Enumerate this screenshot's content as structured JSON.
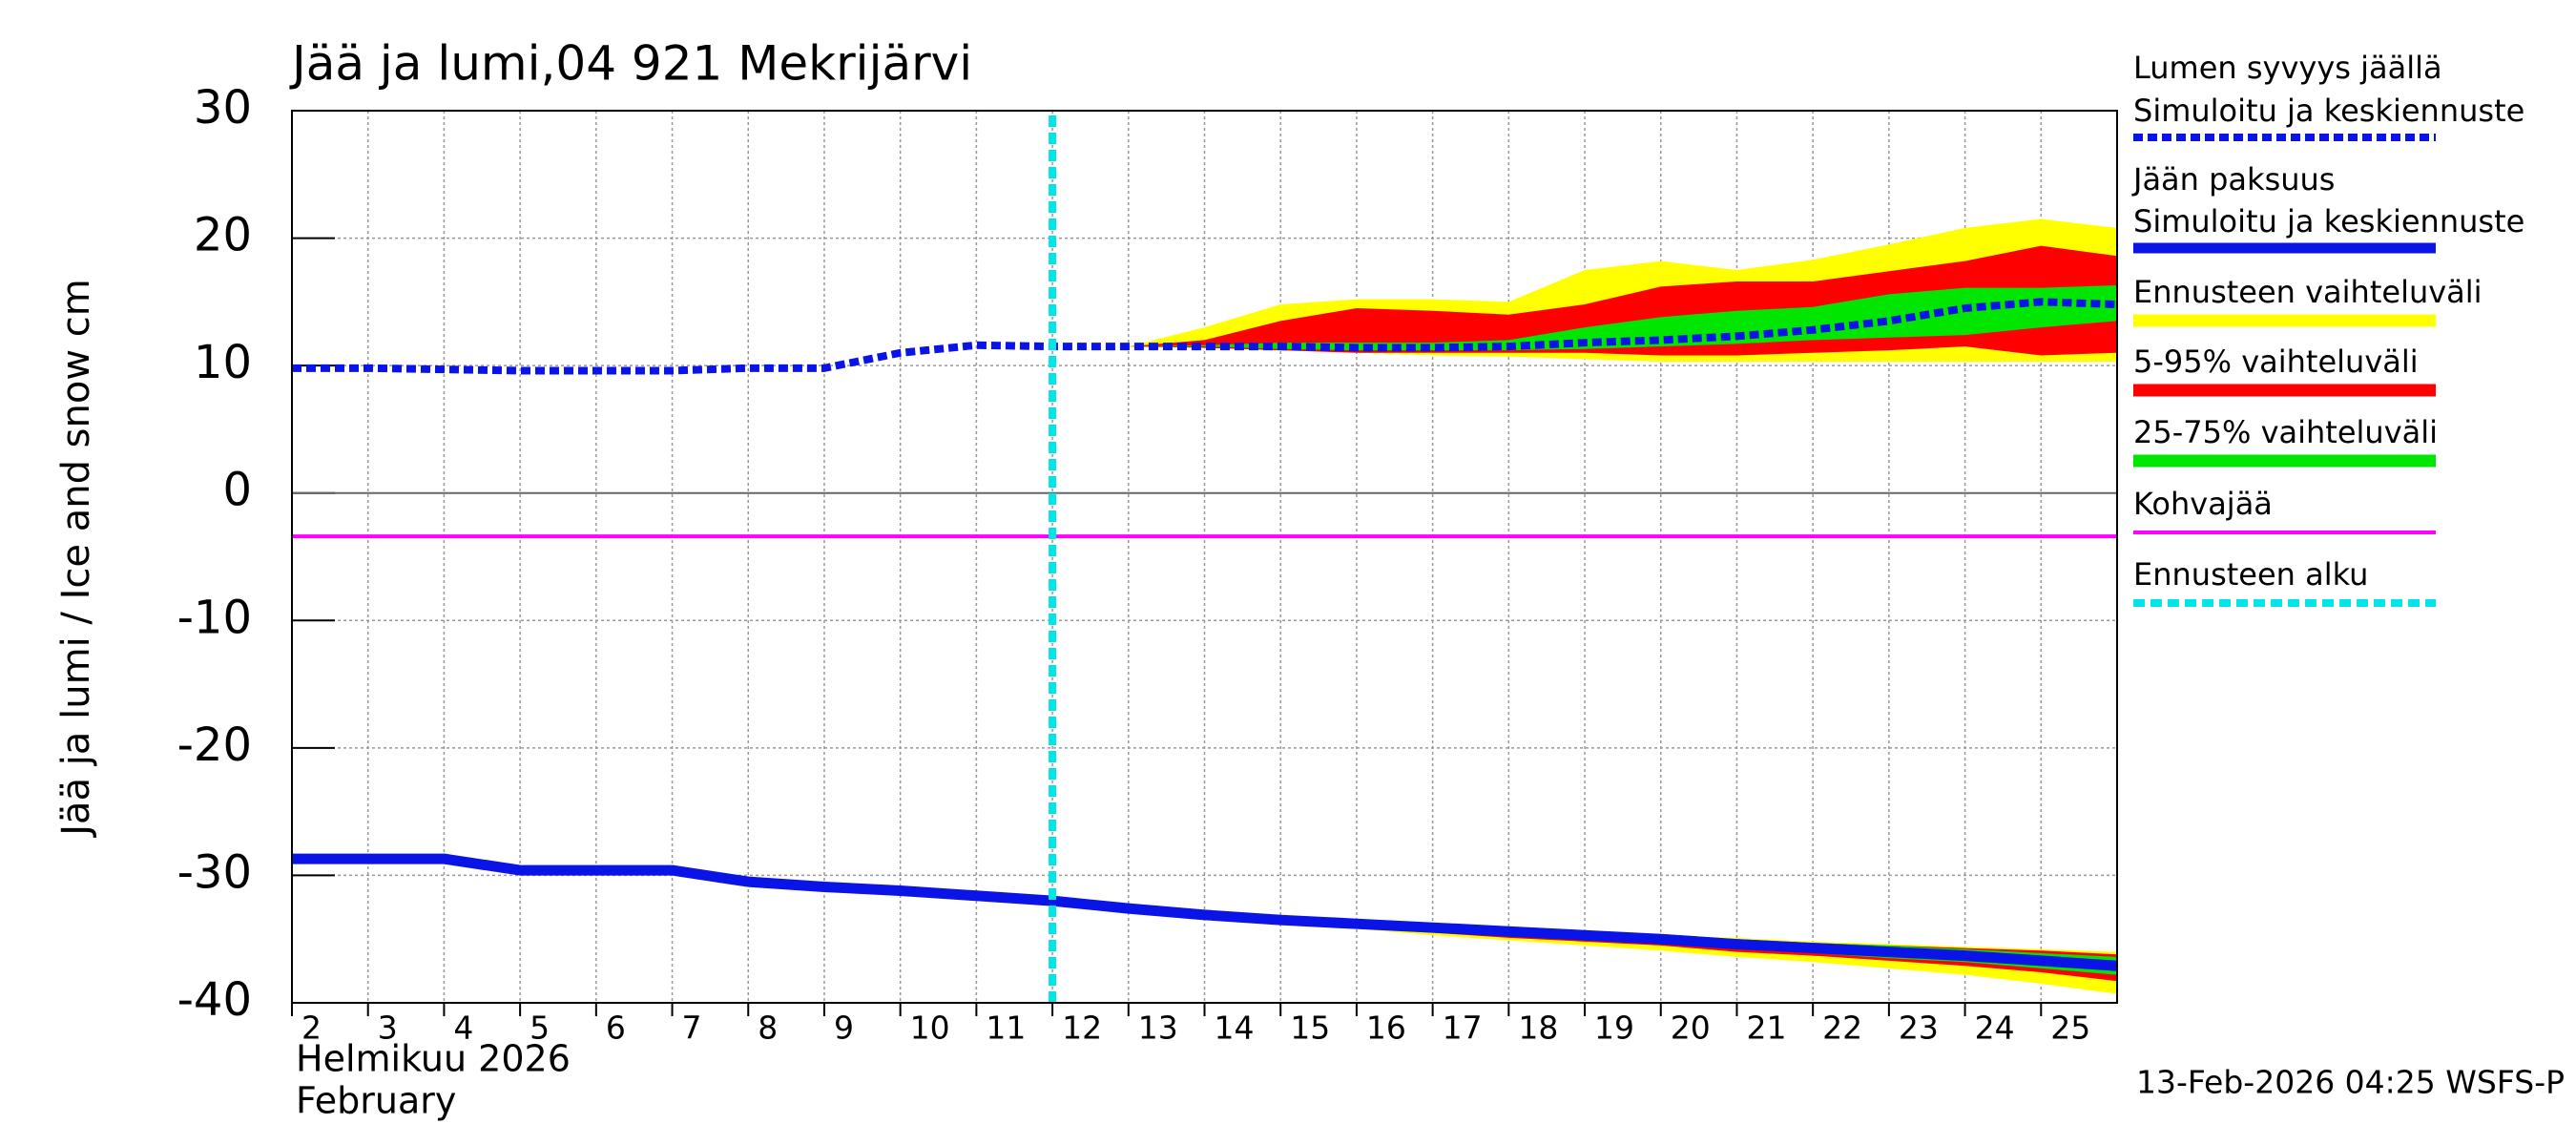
{
  "chart_data": {
    "type": "band-line",
    "title": "Jää ja lumi,04 921 Mekrijärvi",
    "ylabel": "Jää ja lumi / Ice and snow    cm",
    "month_label": "Helmikuu  2026",
    "month_label_en": "February",
    "footer": "13-Feb-2026 04:25 WSFS-P",
    "xlim": [
      2,
      26
    ],
    "xticks": [
      2,
      3,
      4,
      5,
      6,
      7,
      8,
      9,
      10,
      11,
      12,
      13,
      14,
      15,
      16,
      17,
      18,
      19,
      20,
      21,
      22,
      23,
      24,
      25
    ],
    "ylim": [
      -40,
      30
    ],
    "yticks": [
      -40,
      -30,
      -20,
      -10,
      0,
      10,
      20,
      30
    ],
    "grid": true,
    "x": [
      2,
      3,
      4,
      5,
      6,
      7,
      8,
      9,
      10,
      11,
      12,
      13,
      14,
      15,
      16,
      17,
      18,
      19,
      20,
      21,
      22,
      23,
      24,
      25,
      26
    ],
    "series": [
      {
        "name": "Lumen syvyys jäällä",
        "label": "Simuloitu ja keskiennuste",
        "color": "#0a14e6",
        "style": "dashed",
        "values": [
          9.8,
          9.8,
          9.7,
          9.6,
          9.6,
          9.6,
          9.8,
          9.8,
          11.0,
          11.6,
          11.5,
          11.5,
          11.5,
          11.5,
          11.4,
          11.4,
          11.5,
          11.8,
          12.0,
          12.3,
          12.8,
          13.5,
          14.5,
          15.0,
          14.8
        ]
      },
      {
        "name": "Jään paksuus",
        "label": "Simuloitu ja keskiennuste",
        "color": "#0a14e6",
        "style": "solid",
        "values": [
          -28.7,
          -28.7,
          -28.7,
          -29.6,
          -29.6,
          -29.6,
          -30.5,
          -30.9,
          -31.2,
          -31.6,
          -32.0,
          -32.6,
          -33.1,
          -33.5,
          -33.8,
          -34.1,
          -34.4,
          -34.7,
          -35.0,
          -35.4,
          -35.7,
          -36.0,
          -36.3,
          -36.7,
          -37.1
        ]
      },
      {
        "name": "Kohvajää",
        "color": "#ff00ff",
        "style": "thin",
        "values": [
          -3.4,
          -3.4,
          -3.4,
          -3.4,
          -3.4,
          -3.4,
          -3.4,
          -3.4,
          -3.4,
          -3.4,
          -3.4,
          -3.4,
          -3.4,
          -3.4,
          -3.4,
          -3.4,
          -3.4,
          -3.4,
          -3.4,
          -3.4,
          -3.4,
          -3.4,
          -3.4,
          -3.4,
          -3.4
        ]
      }
    ],
    "band_x": [
      13,
      14,
      15,
      16,
      17,
      18,
      19,
      20,
      21,
      22,
      23,
      24,
      25,
      26
    ],
    "bands": [
      {
        "name": "Ennusteen vaihteluväli",
        "color": "#ffff00",
        "snow_upper": [
          11.5,
          13.0,
          14.8,
          15.2,
          15.2,
          15.0,
          17.5,
          18.2,
          17.5,
          18.3,
          19.5,
          20.8,
          21.5,
          20.8
        ],
        "snow_lower": [
          11.5,
          11.5,
          11.3,
          11.0,
          10.8,
          10.7,
          10.5,
          10.3,
          10.3,
          10.3,
          10.3,
          10.3,
          10.3,
          10.3
        ],
        "ice_upper": [
          -32.5,
          -33.0,
          -33.3,
          -33.6,
          -33.9,
          -34.1,
          -34.4,
          -34.7,
          -34.9,
          -35.2,
          -35.4,
          -35.6,
          -35.8,
          -36.0
        ],
        "ice_lower": [
          -32.7,
          -33.3,
          -33.8,
          -34.2,
          -34.7,
          -35.1,
          -35.5,
          -35.9,
          -36.4,
          -36.8,
          -37.3,
          -37.8,
          -38.5,
          -39.3
        ]
      },
      {
        "name": "5-95% vaihteluväli",
        "color": "#ff0000",
        "snow_upper": [
          11.5,
          12.0,
          13.5,
          14.5,
          14.3,
          14.0,
          14.8,
          16.2,
          16.6,
          16.6,
          17.4,
          18.2,
          19.4,
          18.6
        ],
        "snow_lower": [
          11.5,
          11.4,
          11.2,
          11.0,
          11.0,
          11.0,
          11.0,
          10.8,
          10.8,
          11.0,
          11.2,
          11.5,
          10.8,
          11.0
        ],
        "ice_upper": [
          -32.5,
          -33.0,
          -33.4,
          -33.7,
          -34.0,
          -34.2,
          -34.5,
          -34.8,
          -35.0,
          -35.3,
          -35.5,
          -35.7,
          -35.9,
          -36.2
        ],
        "ice_lower": [
          -32.7,
          -33.2,
          -33.7,
          -34.1,
          -34.5,
          -34.9,
          -35.2,
          -35.5,
          -36.0,
          -36.3,
          -36.7,
          -37.1,
          -37.6,
          -38.3
        ]
      },
      {
        "name": "25-75% vaihteluväli",
        "color": "#00e600",
        "snow_upper": [
          11.5,
          11.6,
          11.8,
          11.8,
          11.8,
          12.0,
          13.0,
          13.8,
          14.3,
          14.6,
          15.6,
          16.1,
          16.1,
          16.3
        ],
        "snow_lower": [
          11.5,
          11.5,
          11.3,
          11.2,
          11.2,
          11.2,
          11.3,
          11.5,
          11.7,
          12.0,
          12.2,
          12.4,
          13.0,
          13.5
        ],
        "ice_upper": [
          -32.5,
          -32.9,
          -33.3,
          -33.6,
          -33.8,
          -34.1,
          -34.4,
          -34.6,
          -35.0,
          -35.3,
          -35.5,
          -35.8,
          -36.1,
          -36.4
        ],
        "ice_lower": [
          -32.7,
          -33.3,
          -33.7,
          -34.0,
          -34.4,
          -34.7,
          -35.0,
          -35.4,
          -35.8,
          -36.1,
          -36.5,
          -36.8,
          -37.3,
          -37.8
        ]
      }
    ],
    "forecast_start": {
      "name": "Ennusteen alku",
      "x": 12,
      "color": "#00e5e5"
    }
  }
}
